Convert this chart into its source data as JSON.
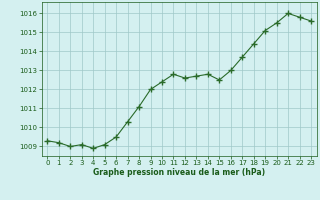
{
  "x": [
    0,
    1,
    2,
    3,
    4,
    5,
    6,
    7,
    8,
    9,
    10,
    11,
    12,
    13,
    14,
    15,
    16,
    17,
    18,
    19,
    20,
    21,
    22,
    23
  ],
  "y": [
    1009.3,
    1009.2,
    1009.0,
    1009.1,
    1008.9,
    1009.1,
    1009.5,
    1010.3,
    1011.1,
    1012.0,
    1012.4,
    1012.8,
    1012.6,
    1012.7,
    1012.8,
    1012.5,
    1013.0,
    1013.7,
    1014.4,
    1015.1,
    1015.5,
    1016.0,
    1015.8,
    1015.6
  ],
  "line_color": "#2a6b2a",
  "marker": "+",
  "marker_size": 4,
  "bg_color": "#d4f0f0",
  "grid_color": "#a0c8c8",
  "xlabel": "Graphe pression niveau de la mer (hPa)",
  "xlabel_color": "#1a5c1a",
  "tick_color": "#1a5c1a",
  "ylim_min": 1008.5,
  "ylim_max": 1016.6,
  "yticks": [
    1009,
    1010,
    1011,
    1012,
    1013,
    1014,
    1015,
    1016
  ],
  "xticks": [
    0,
    1,
    2,
    3,
    4,
    5,
    6,
    7,
    8,
    9,
    10,
    11,
    12,
    13,
    14,
    15,
    16,
    17,
    18,
    19,
    20,
    21,
    22,
    23
  ]
}
